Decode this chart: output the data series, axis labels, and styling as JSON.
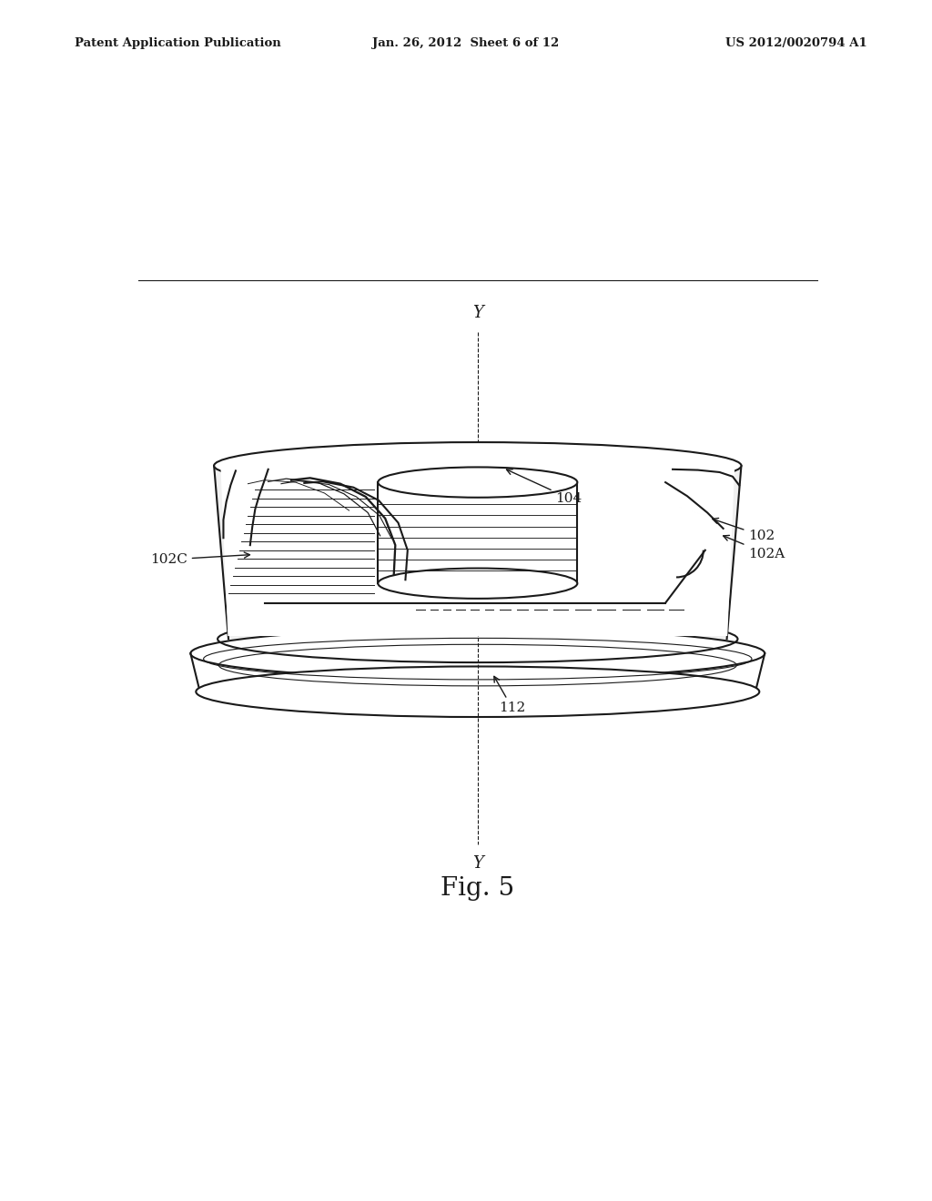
{
  "header_left": "Patent Application Publication",
  "header_center": "Jan. 26, 2012  Sheet 6 of 12",
  "header_right": "US 2012/0020794 A1",
  "fig_label": "Fig. 5",
  "bg_color": "#ffffff",
  "line_color": "#1a1a1a"
}
